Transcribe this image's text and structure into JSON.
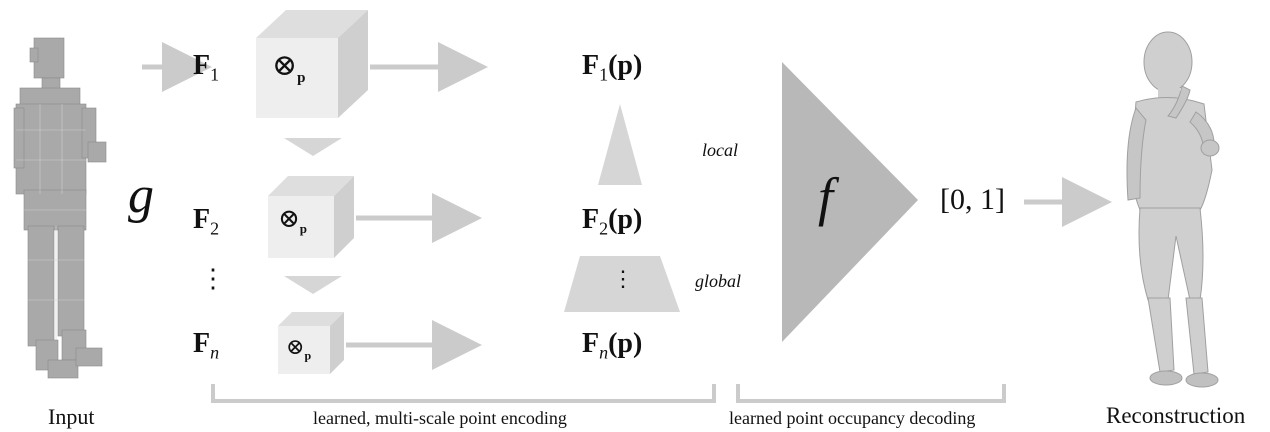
{
  "colors": {
    "light_gray": "#cbcbcb",
    "box_face": "#eeeeee",
    "box_side": "#cfcfcf",
    "box_top": "#dedede",
    "triangle": "#b8b8b8",
    "text": "#111111"
  },
  "input": {
    "label": "Input"
  },
  "output": {
    "label": "Reconstruction"
  },
  "encoder": {
    "symbol": "g"
  },
  "features": [
    {
      "name": "F",
      "sub": "1"
    },
    {
      "name": "F",
      "sub": "2"
    },
    {
      "name": "F",
      "sub": "n"
    }
  ],
  "features_ellipsis": "⋮",
  "sample_op": {
    "symbol": "⊗",
    "sub": "p"
  },
  "point_features": [
    {
      "name": "F",
      "sub": "1",
      "arg": "(p)"
    },
    {
      "name": "F",
      "sub": "2",
      "arg": "(p)"
    },
    {
      "name": "F",
      "sub": "n",
      "arg": "(p)"
    }
  ],
  "pyramid": {
    "ellipsis": "⋮",
    "top_label": "local",
    "bottom_label": "global"
  },
  "decoder": {
    "symbol": "f",
    "output_range": "[0, 1]"
  },
  "brackets": {
    "encoding": "learned, multi-scale point encoding",
    "decoding": "learned point occupancy decoding"
  }
}
